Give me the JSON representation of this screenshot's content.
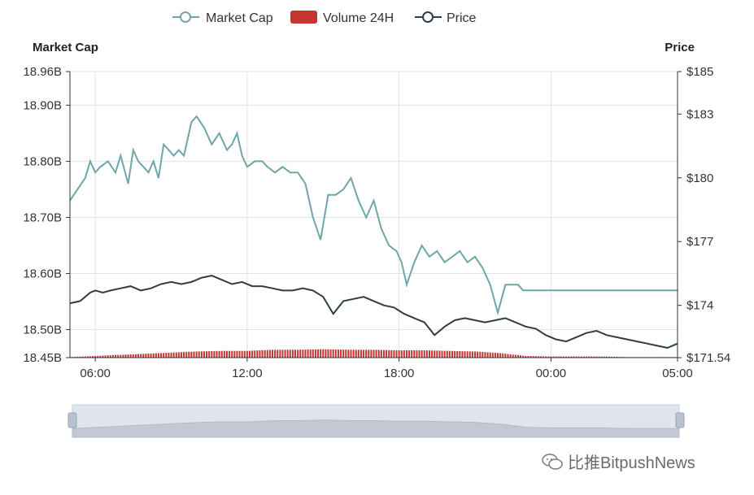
{
  "legend": [
    {
      "label": "Market Cap",
      "color": "#6fa6a8",
      "kind": "line"
    },
    {
      "label": "Volume 24H",
      "color": "#c23531",
      "kind": "bar"
    },
    {
      "label": "Price",
      "color": "#2f3d49",
      "kind": "line"
    }
  ],
  "left_axis_title": "Market Cap",
  "right_axis_title": "Price",
  "watermark": "比推BitpushNews",
  "chart_data": {
    "type": "line",
    "x_ticks": [
      "06:00",
      "12:00",
      "18:00",
      "00:00",
      "05:00"
    ],
    "x_tick_hours": [
      1.0,
      7.0,
      13.0,
      19.0,
      24.0
    ],
    "x_range_hours": [
      0,
      24.0
    ],
    "ylim_left": [
      18.45,
      18.96
    ],
    "yticks_left": [
      {
        "v": 18.96,
        "label": "18.96B"
      },
      {
        "v": 18.9,
        "label": "18.90B"
      },
      {
        "v": 18.8,
        "label": "18.80B"
      },
      {
        "v": 18.7,
        "label": "18.70B"
      },
      {
        "v": 18.6,
        "label": "18.60B"
      },
      {
        "v": 18.5,
        "label": "18.50B"
      },
      {
        "v": 18.45,
        "label": "18.45B"
      }
    ],
    "ylim_right": [
      171.54,
      185
    ],
    "yticks_right": [
      {
        "v": 185,
        "label": "$185"
      },
      {
        "v": 183,
        "label": "$183"
      },
      {
        "v": 180,
        "label": "$180"
      },
      {
        "v": 177,
        "label": "$177"
      },
      {
        "v": 174,
        "label": "$174"
      },
      {
        "v": 171.54,
        "label": "$171.54"
      }
    ],
    "series": [
      {
        "name": "Market Cap",
        "axis": "left",
        "color": "#6fa6a8",
        "x": [
          0,
          0.3,
          0.6,
          0.8,
          1.0,
          1.2,
          1.5,
          1.8,
          2.0,
          2.3,
          2.5,
          2.7,
          2.9,
          3.1,
          3.3,
          3.5,
          3.7,
          3.9,
          4.1,
          4.3,
          4.5,
          4.8,
          5.0,
          5.3,
          5.6,
          5.9,
          6.2,
          6.4,
          6.6,
          6.8,
          7.0,
          7.3,
          7.6,
          7.8,
          8.1,
          8.4,
          8.7,
          9.0,
          9.3,
          9.6,
          9.9,
          10.2,
          10.5,
          10.8,
          11.1,
          11.4,
          11.7,
          12.0,
          12.3,
          12.6,
          12.9,
          13.1,
          13.3,
          13.6,
          13.9,
          14.2,
          14.5,
          14.8,
          15.1,
          15.4,
          15.7,
          16.0,
          16.3,
          16.6,
          16.9,
          17.2,
          17.5,
          17.7,
          17.9,
          18.2,
          18.5,
          18.8,
          19.1,
          19.4,
          19.7,
          20.0,
          20.3,
          20.6,
          20.9,
          21.2,
          21.5,
          21.8,
          22.1,
          22.4,
          22.7,
          23.0,
          23.3,
          23.6,
          23.9,
          24.0
        ],
        "values": [
          18.73,
          18.75,
          18.77,
          18.8,
          18.78,
          18.79,
          18.8,
          18.78,
          18.81,
          18.76,
          18.82,
          18.8,
          18.79,
          18.78,
          18.8,
          18.77,
          18.83,
          18.82,
          18.81,
          18.82,
          18.81,
          18.87,
          18.88,
          18.86,
          18.83,
          18.85,
          18.82,
          18.83,
          18.85,
          18.81,
          18.79,
          18.8,
          18.8,
          18.79,
          18.78,
          18.79,
          18.78,
          18.78,
          18.76,
          18.7,
          18.66,
          18.74,
          18.74,
          18.75,
          18.77,
          18.73,
          18.7,
          18.73,
          18.68,
          18.65,
          18.64,
          18.62,
          18.58,
          18.62,
          18.65,
          18.63,
          18.64,
          18.62,
          18.63,
          18.64,
          18.62,
          18.63,
          18.61,
          18.58,
          18.53,
          18.58,
          18.58,
          18.58,
          18.57,
          18.57,
          18.57,
          18.57,
          18.57,
          18.57,
          18.57,
          18.57,
          18.57,
          18.57,
          18.57,
          18.57,
          18.57,
          18.57,
          18.57,
          18.57,
          18.57,
          18.57,
          18.57,
          18.57,
          18.57,
          18.57
        ]
      },
      {
        "name": "Price",
        "axis": "right",
        "color": "#2f3d49",
        "x": [
          0,
          0.4,
          0.8,
          1.0,
          1.3,
          1.6,
          2.0,
          2.4,
          2.8,
          3.2,
          3.6,
          4.0,
          4.4,
          4.8,
          5.2,
          5.6,
          6.0,
          6.4,
          6.8,
          7.2,
          7.6,
          8.0,
          8.4,
          8.8,
          9.2,
          9.6,
          10.0,
          10.4,
          10.8,
          11.2,
          11.6,
          12.0,
          12.4,
          12.8,
          13.2,
          13.6,
          14.0,
          14.4,
          14.8,
          15.2,
          15.6,
          16.0,
          16.4,
          16.8,
          17.2,
          17.6,
          18.0,
          18.4,
          18.8,
          19.2,
          19.6,
          20.0,
          20.4,
          20.8,
          21.2,
          21.6,
          22.0,
          22.4,
          22.8,
          23.2,
          23.6,
          24.0
        ],
        "values": [
          174.1,
          174.2,
          174.6,
          174.7,
          174.6,
          174.7,
          174.8,
          174.9,
          174.7,
          174.8,
          175.0,
          175.1,
          175.0,
          175.1,
          175.3,
          175.4,
          175.2,
          175.0,
          175.1,
          174.9,
          174.9,
          174.8,
          174.7,
          174.7,
          174.8,
          174.7,
          174.4,
          173.6,
          174.2,
          174.3,
          174.4,
          174.2,
          174.0,
          173.9,
          173.6,
          173.4,
          173.2,
          172.6,
          173.0,
          173.3,
          173.4,
          173.3,
          173.2,
          173.3,
          173.4,
          173.2,
          173.0,
          172.9,
          172.6,
          172.4,
          172.3,
          172.5,
          172.7,
          172.8,
          172.6,
          172.5,
          172.4,
          172.3,
          172.2,
          172.1,
          172.0,
          172.2
        ]
      },
      {
        "name": "Volume 24H",
        "axis": "left",
        "color": "#c23531",
        "x": [
          0,
          1,
          2,
          3,
          4,
          5,
          6,
          7,
          8,
          9,
          10,
          11,
          12,
          13,
          14,
          15,
          16,
          17,
          18,
          19,
          20,
          21,
          22,
          23,
          24
        ],
        "values": [
          18.451,
          18.453,
          18.455,
          18.457,
          18.459,
          18.461,
          18.462,
          18.462,
          18.464,
          18.464,
          18.465,
          18.464,
          18.464,
          18.463,
          18.463,
          18.462,
          18.461,
          18.458,
          18.453,
          18.452,
          18.452,
          18.452,
          18.451,
          18.451,
          18.451
        ]
      }
    ]
  }
}
